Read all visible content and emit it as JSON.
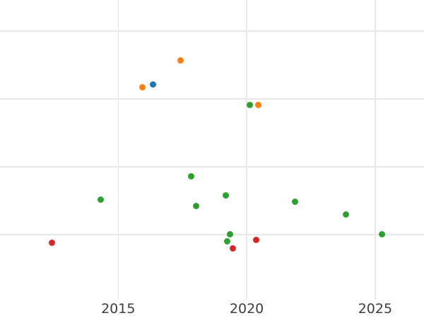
{
  "chart_data": {
    "type": "scatter",
    "title": "",
    "xlabel": "",
    "ylabel": "",
    "grid": true,
    "legend": "none",
    "x_axis": {
      "ticks": [
        {
          "value": 2015,
          "label": "2015"
        },
        {
          "value": 2020,
          "label": "2020"
        },
        {
          "value": 2025,
          "label": "2025"
        }
      ]
    },
    "y_axis": {
      "labels_visible": false,
      "gridline_values": [
        0,
        1,
        2,
        3
      ]
    },
    "xlim": [
      2010.4,
      2026.9
    ],
    "ylim": [
      -1.23,
      3.46
    ],
    "series": [
      {
        "name": "blue",
        "color": "#1f77b4",
        "points": [
          {
            "x": 2016.35,
            "y": 2.21
          }
        ]
      },
      {
        "name": "orange",
        "color": "#ff7f0e",
        "points": [
          {
            "x": 2015.93,
            "y": 2.17
          },
          {
            "x": 2017.42,
            "y": 2.57
          },
          {
            "x": 2020.45,
            "y": 1.91
          }
        ]
      },
      {
        "name": "green",
        "color": "#2ca02c",
        "points": [
          {
            "x": 2014.33,
            "y": 0.52
          },
          {
            "x": 2017.85,
            "y": 0.86
          },
          {
            "x": 2018.04,
            "y": 0.42
          },
          {
            "x": 2019.18,
            "y": 0.58
          },
          {
            "x": 2019.23,
            "y": -0.1
          },
          {
            "x": 2019.34,
            "y": 0.0
          },
          {
            "x": 2020.12,
            "y": 1.91
          },
          {
            "x": 2021.88,
            "y": 0.48
          },
          {
            "x": 2023.87,
            "y": 0.3
          },
          {
            "x": 2025.25,
            "y": 0.0
          }
        ]
      },
      {
        "name": "red",
        "color": "#d62728",
        "points": [
          {
            "x": 2012.41,
            "y": -0.12
          },
          {
            "x": 2019.45,
            "y": -0.2
          },
          {
            "x": 2020.36,
            "y": -0.08
          }
        ]
      }
    ]
  },
  "styles": {
    "background_color": "#ffffff",
    "gridline_color": "#e8e8e8",
    "tick_label_color": "#3d3d3d"
  }
}
